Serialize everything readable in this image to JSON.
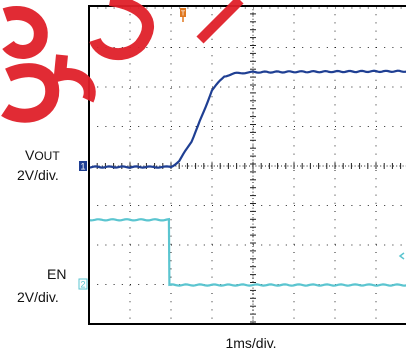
{
  "labels": {
    "ch1_name_main": "V",
    "ch1_name_sub": "OUT",
    "ch1_scale": "2V/div.",
    "ch2_name": "EN",
    "ch2_scale": "2V/div.",
    "time_scale": "1ms/div.",
    "ch1_marker": "1",
    "ch2_marker": "2",
    "trigger_marker": "T"
  },
  "colors": {
    "ch1": "#1f3f93",
    "ch2": "#5bc5d0",
    "grid": "#222222",
    "frame": "#000000",
    "trigger": "#e07820",
    "watermark": "#e0202a"
  },
  "chart_data": {
    "type": "line",
    "title": "",
    "xlabel": "1ms/div.",
    "ylabel": "",
    "x_unit": "ms",
    "xlim": [
      -1,
      7
    ],
    "grid": true,
    "series": [
      {
        "name": "VOUT",
        "scale": "2V/div.",
        "x": [
          -1.0,
          0.5,
          1.0,
          1.2,
          1.5,
          1.8,
          2.0,
          2.3,
          2.6,
          3.0,
          4.0,
          5.0,
          6.0,
          7.0
        ],
        "values": [
          0,
          0,
          0,
          0.3,
          1.3,
          2.8,
          3.9,
          4.6,
          4.75,
          4.8,
          4.82,
          4.83,
          4.84,
          4.85
        ]
      },
      {
        "name": "EN",
        "scale": "2V/div.",
        "x": [
          -1.0,
          0.95,
          0.96,
          7.0
        ],
        "values": [
          3.3,
          3.3,
          0,
          0
        ]
      }
    ]
  }
}
